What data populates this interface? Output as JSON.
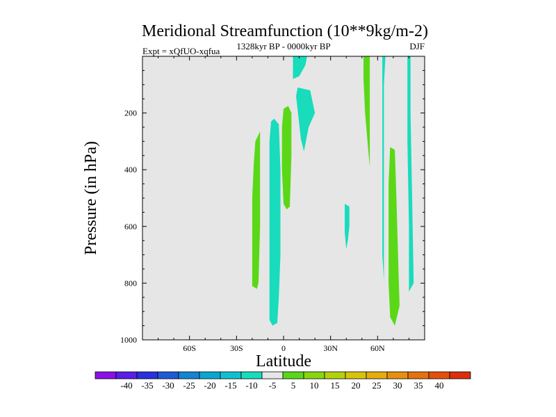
{
  "chart_data": {
    "type": "contour",
    "title": "Meridional Streamfunction (10**9kg/m-2)",
    "subtitle_left": "Expt = xQfUO-xqfua",
    "subtitle_center": "1328kyr BP - 0000kyr BP",
    "subtitle_right": "DJF",
    "xlabel": "Latitude",
    "ylabel": "Pressure (in hPa)",
    "xlim": [
      -90,
      90
    ],
    "ylim": [
      1000,
      0
    ],
    "xticks": [
      {
        "value": -60,
        "label": "60S"
      },
      {
        "value": -30,
        "label": "30S"
      },
      {
        "value": 0,
        "label": "0"
      },
      {
        "value": 30,
        "label": "30N"
      },
      {
        "value": 60,
        "label": "60N"
      }
    ],
    "yticks": [
      {
        "value": 200,
        "label": "200"
      },
      {
        "value": 400,
        "label": "400"
      },
      {
        "value": 600,
        "label": "600"
      },
      {
        "value": 800,
        "label": "800"
      },
      {
        "value": 1000,
        "label": "1000"
      }
    ],
    "background_color": "#e6e6e6",
    "colorbar": {
      "colors": [
        "#8a10e6",
        "#5a1ee6",
        "#2a30dc",
        "#1e5ad6",
        "#1484d2",
        "#0aa6d2",
        "#10c0d0",
        "#18dcbc",
        "#e6e6e6",
        "#5ad818",
        "#88d610",
        "#b4d20c",
        "#d8c40c",
        "#e6ae0c",
        "#e6900c",
        "#e6720c",
        "#e4500c",
        "#dc2e0c"
      ],
      "labels": [
        "-40",
        "-35",
        "-30",
        "-25",
        "-20",
        "-15",
        "-10",
        "-5",
        "5",
        "10",
        "15",
        "20",
        "25",
        "30",
        "35",
        "40"
      ]
    },
    "regions": [
      {
        "value": -5,
        "color": "#18dcbc",
        "points": [
          [
            6,
            0
          ],
          [
            15,
            0
          ],
          [
            14,
            30
          ],
          [
            10,
            70
          ],
          [
            6,
            80
          ]
        ]
      },
      {
        "value": -5,
        "color": "#18dcbc",
        "points": [
          [
            9,
            110
          ],
          [
            17,
            120
          ],
          [
            20,
            200
          ],
          [
            16,
            250
          ],
          [
            13,
            335
          ],
          [
            11,
            290
          ],
          [
            9,
            190
          ],
          [
            8,
            140
          ]
        ]
      },
      {
        "value": -5,
        "color": "#18dcbc",
        "points": [
          [
            -8,
            230
          ],
          [
            -6,
            220
          ],
          [
            -3,
            240
          ],
          [
            -2,
            400
          ],
          [
            -2,
            600
          ],
          [
            -2,
            700
          ],
          [
            -3,
            850
          ],
          [
            -4,
            940
          ],
          [
            -7,
            950
          ],
          [
            -9,
            930
          ],
          [
            -9,
            850
          ],
          [
            -9,
            650
          ],
          [
            -9,
            450
          ],
          [
            -9,
            300
          ]
        ]
      },
      {
        "value": -5,
        "color": "#18dcbc",
        "points": [
          [
            39,
            520
          ],
          [
            42,
            530
          ],
          [
            42,
            600
          ],
          [
            41,
            650
          ],
          [
            40,
            680
          ],
          [
            39,
            620
          ],
          [
            39,
            560
          ]
        ]
      },
      {
        "value": -5,
        "color": "#18dcbc",
        "points": [
          [
            63,
            0
          ],
          [
            65,
            0
          ],
          [
            64,
            100
          ],
          [
            64,
            400
          ],
          [
            64,
            700
          ],
          [
            64,
            790
          ],
          [
            63,
            700
          ],
          [
            63,
            400
          ],
          [
            63,
            100
          ]
        ]
      },
      {
        "value": -5,
        "color": "#18dcbc",
        "points": [
          [
            79,
            0
          ],
          [
            81,
            0
          ],
          [
            81,
            200
          ],
          [
            82,
            500
          ],
          [
            83,
            800
          ],
          [
            80,
            830
          ],
          [
            80,
            600
          ],
          [
            79,
            300
          ],
          [
            79,
            100
          ]
        ]
      },
      {
        "value": 5,
        "color": "#5ad818",
        "points": [
          [
            -18,
            300
          ],
          [
            -15,
            265
          ],
          [
            -15,
            400
          ],
          [
            -15,
            600
          ],
          [
            -16,
            800
          ],
          [
            -17,
            820
          ],
          [
            -20,
            810
          ],
          [
            -20,
            650
          ],
          [
            -20,
            500
          ],
          [
            -19,
            380
          ]
        ]
      },
      {
        "value": 5,
        "color": "#5ad818",
        "points": [
          [
            0,
            185
          ],
          [
            3,
            175
          ],
          [
            5,
            200
          ],
          [
            5,
            350
          ],
          [
            4,
            530
          ],
          [
            2,
            540
          ],
          [
            0,
            520
          ],
          [
            -1,
            400
          ],
          [
            -1,
            250
          ]
        ]
      },
      {
        "value": 5,
        "color": "#5ad818",
        "points": [
          [
            51,
            0
          ],
          [
            55,
            0
          ],
          [
            55,
            150
          ],
          [
            55,
            250
          ],
          [
            55,
            390
          ],
          [
            54,
            330
          ],
          [
            52,
            200
          ],
          [
            51,
            80
          ]
        ]
      },
      {
        "value": 5,
        "color": "#5ad818",
        "points": [
          [
            68,
            320
          ],
          [
            71,
            330
          ],
          [
            72,
            500
          ],
          [
            73,
            700
          ],
          [
            74,
            880
          ],
          [
            71,
            950
          ],
          [
            68,
            920
          ],
          [
            67,
            800
          ],
          [
            67,
            600
          ],
          [
            67,
            450
          ]
        ]
      }
    ]
  }
}
